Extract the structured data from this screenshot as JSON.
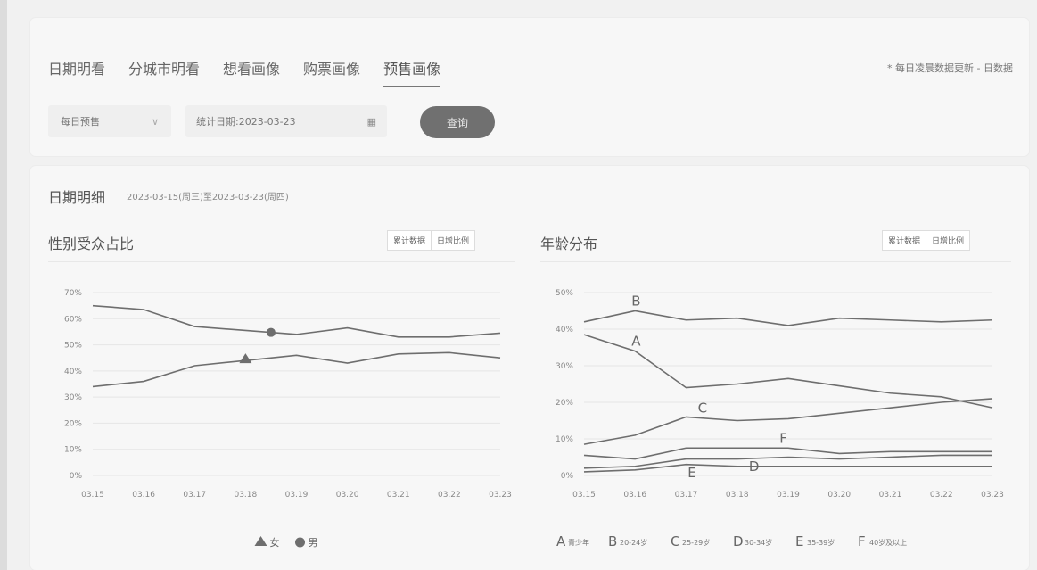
{
  "tabs": [
    "日期明看",
    "分城市明看",
    "想看画像",
    "购票画像",
    "预售画像"
  ],
  "active_tab_index": 4,
  "note": "* 每日凌晨数据更新 - 日数据",
  "filters": {
    "mode_select": "每日预售",
    "date_label": "统计日期:2023-03-23",
    "query_button": "查询"
  },
  "detail": {
    "title": "日期明细",
    "range": "2023-03-15(周三)至2023-03-23(周四)"
  },
  "toggle_labels": [
    "累计数据",
    "日增比例"
  ],
  "charts": {
    "gender": {
      "title": "性别受众占比"
    },
    "age": {
      "title": "年龄分布"
    }
  },
  "chart_data": [
    {
      "type": "line",
      "title": "性别受众占比",
      "x": [
        "03.15",
        "03.16",
        "03.17",
        "03.18",
        "03.19",
        "03.20",
        "03.21",
        "03.22",
        "03.23"
      ],
      "y_ticks": [
        "0%",
        "10%",
        "20%",
        "30%",
        "40%",
        "50%",
        "60%",
        "70%"
      ],
      "ylim": [
        0,
        70
      ],
      "series": [
        {
          "name": "女",
          "marker": "triangle",
          "values": [
            34,
            36,
            42,
            44,
            46,
            43,
            46.5,
            47,
            45
          ]
        },
        {
          "name": "男",
          "marker": "circle",
          "values": [
            65,
            63.5,
            57,
            55.5,
            54,
            56.5,
            53,
            53,
            54.5
          ]
        }
      ],
      "legend": "bottom",
      "colors": {
        "line": "#6e6e6e",
        "grid": "#e6e6e6"
      }
    },
    {
      "type": "line",
      "title": "年龄分布",
      "x": [
        "03.15",
        "03.16",
        "03.17",
        "03.18",
        "03.19",
        "03.20",
        "03.21",
        "03.22",
        "03.23"
      ],
      "y_ticks": [
        "0%",
        "10%",
        "20%",
        "30%",
        "40%",
        "50%"
      ],
      "ylim": [
        0,
        50
      ],
      "series": [
        {
          "name": "青少年",
          "letter": "A",
          "values": [
            38.5,
            34,
            24,
            25,
            26.5,
            24.5,
            22.5,
            21.5,
            18.5
          ]
        },
        {
          "name": "20-24岁",
          "letter": "B",
          "values": [
            42,
            45,
            42.5,
            43,
            41,
            43,
            42.5,
            42,
            42.5
          ]
        },
        {
          "name": "25-29岁",
          "letter": "C",
          "values": [
            8.5,
            11,
            16,
            15,
            15.5,
            17,
            18.5,
            20,
            21
          ]
        },
        {
          "name": "30-34岁",
          "letter": "D",
          "values": [
            2,
            2.5,
            4.5,
            4.5,
            5,
            4.5,
            5,
            5.5,
            5.5
          ]
        },
        {
          "name": "35-39岁",
          "letter": "E",
          "values": [
            1,
            1.5,
            3,
            2.5,
            2.5,
            2.5,
            2.5,
            2.5,
            2.5
          ]
        },
        {
          "name": "40岁及以上",
          "letter": "F",
          "values": [
            5.5,
            4.5,
            7.5,
            7.5,
            7.5,
            6,
            6.5,
            6.5,
            6.5
          ]
        }
      ],
      "legend": "bottom",
      "colors": {
        "line": "#6e6e6e",
        "grid": "#e6e6e6"
      }
    }
  ]
}
